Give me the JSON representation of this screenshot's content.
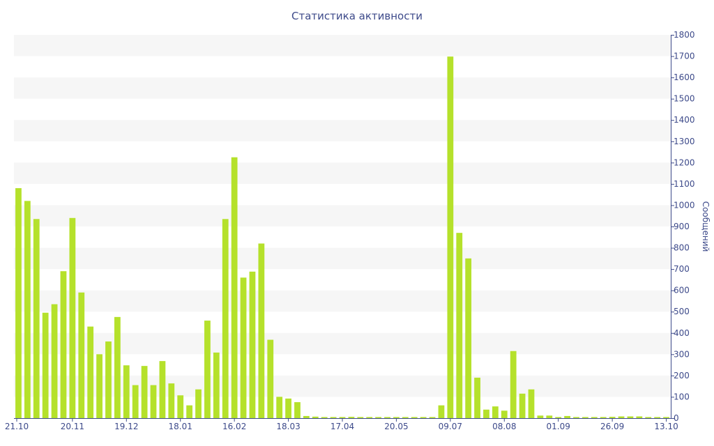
{
  "chart_data": {
    "type": "bar",
    "title": "Статистика активности",
    "ylabel": "Сообщений",
    "xlabel": "",
    "ylim": [
      0,
      1800
    ],
    "y_ticks": [
      0,
      100,
      200,
      300,
      400,
      500,
      600,
      700,
      800,
      900,
      1000,
      1100,
      1200,
      1300,
      1400,
      1500,
      1600,
      1700,
      1800
    ],
    "y_axis_side": "right",
    "grid": "alternating horizontal bands",
    "x_tick_labels": [
      {
        "index": 0,
        "label": "21.10"
      },
      {
        "index": 6,
        "label": "20.11"
      },
      {
        "index": 12,
        "label": "19.12"
      },
      {
        "index": 18,
        "label": "18.01"
      },
      {
        "index": 24,
        "label": "16.02"
      },
      {
        "index": 30,
        "label": "18.03"
      },
      {
        "index": 36,
        "label": "17.04"
      },
      {
        "index": 42,
        "label": "20.05"
      },
      {
        "index": 48,
        "label": "09.07"
      },
      {
        "index": 54,
        "label": "08.08"
      },
      {
        "index": 60,
        "label": "01.09"
      },
      {
        "index": 66,
        "label": "26.09"
      },
      {
        "index": 72,
        "label": "13.10"
      }
    ],
    "values": [
      1080,
      1020,
      935,
      495,
      535,
      690,
      940,
      590,
      430,
      300,
      360,
      475,
      248,
      155,
      245,
      155,
      268,
      163,
      107,
      60,
      135,
      458,
      308,
      935,
      1225,
      660,
      688,
      820,
      368,
      100,
      92,
      75,
      10,
      7,
      5,
      5,
      5,
      6,
      5,
      5,
      5,
      5,
      5,
      5,
      5,
      5,
      5,
      60,
      1698,
      870,
      750,
      190,
      40,
      55,
      35,
      315,
      115,
      135,
      12,
      12,
      5,
      10,
      5,
      5,
      5,
      5,
      6,
      8,
      8,
      8,
      5,
      5,
      5
    ],
    "colors": {
      "bar": "#b5e12b",
      "band": "#f6f6f6",
      "text": "#3d4a8a",
      "axis": "#3d4a8a"
    }
  }
}
